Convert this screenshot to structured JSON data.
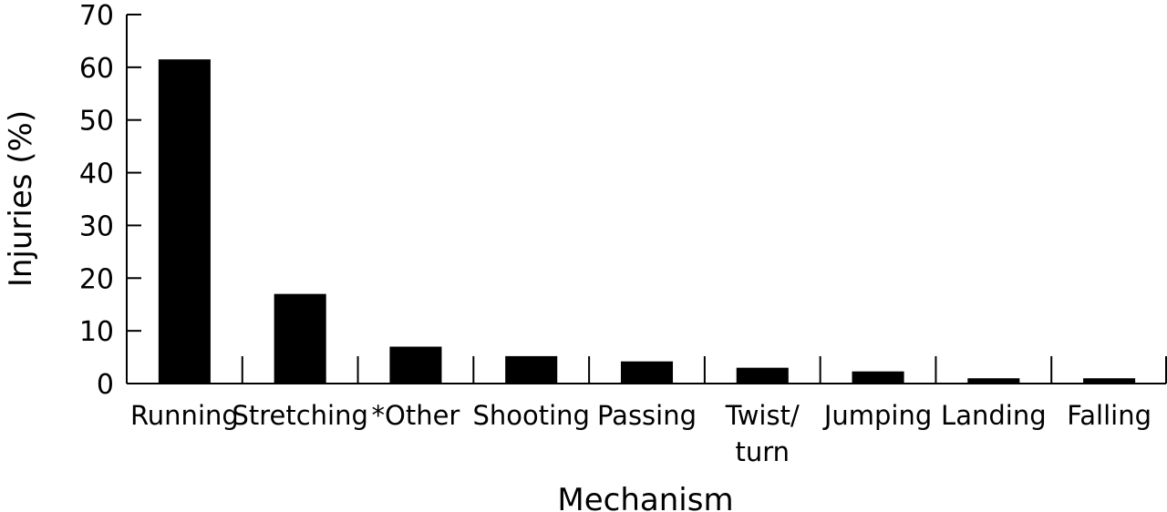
{
  "chart_data": {
    "type": "bar",
    "title": "",
    "xlabel": "Mechanism",
    "ylabel": "Injuries (%)",
    "ylim": [
      0,
      70
    ],
    "yticks": [
      0,
      10,
      20,
      30,
      40,
      50,
      60,
      70
    ],
    "categories": [
      [
        "Running"
      ],
      [
        "Stretching"
      ],
      [
        "*Other"
      ],
      [
        "Shooting"
      ],
      [
        "Passing"
      ],
      [
        "Twist/",
        "turn"
      ],
      [
        "Jumping"
      ],
      [
        "Landing"
      ],
      [
        "Falling"
      ]
    ],
    "values": [
      61.5,
      17,
      7,
      5.2,
      4.2,
      3,
      2.3,
      1,
      1
    ],
    "bar_color": "#000000",
    "grid": false
  }
}
